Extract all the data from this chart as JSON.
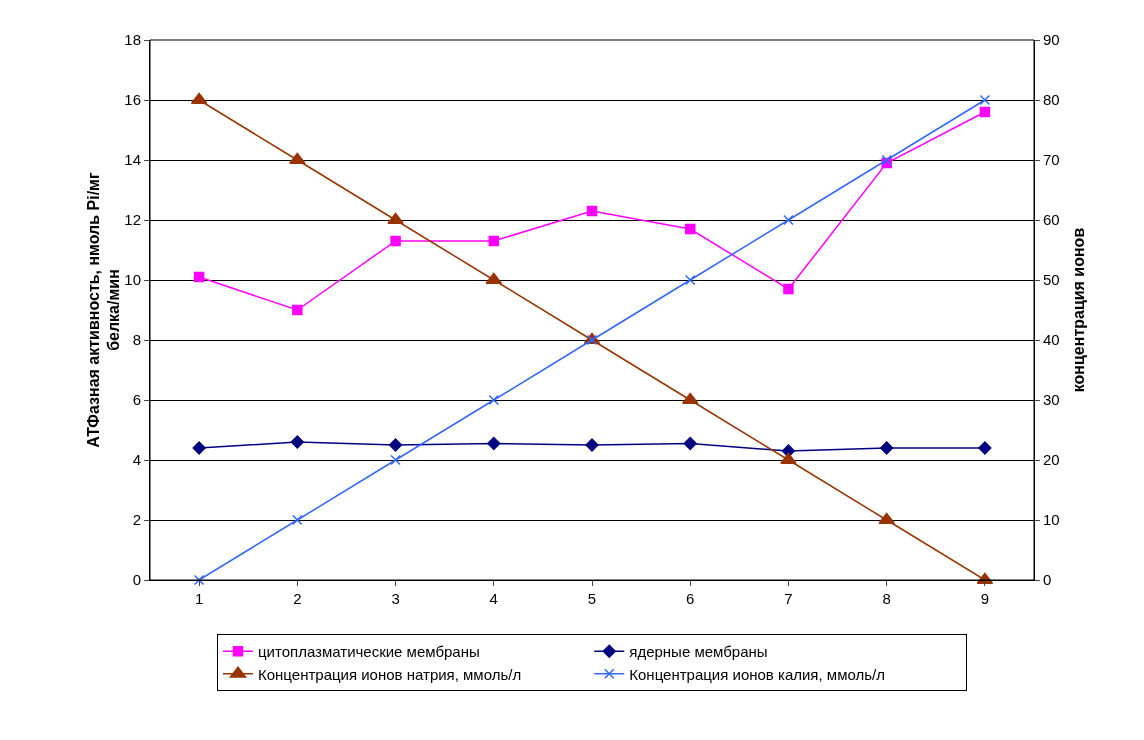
{
  "chart_data": {
    "type": "line",
    "ylabel": "АТФазная активность, нмоль Pi/мг белка/мин",
    "y2label": "концентрация ионов",
    "categories": [
      "1",
      "2",
      "3",
      "4",
      "5",
      "6",
      "7",
      "8",
      "9"
    ],
    "series": [
      {
        "name": "цитоплазматические мембраны",
        "color": "#ff00ff",
        "marker": "square",
        "values": [
          10.1,
          9.0,
          11.3,
          11.3,
          12.3,
          11.7,
          9.7,
          13.9,
          15.6
        ]
      },
      {
        "name": "ядерные мембраны",
        "color": "#000080",
        "marker": "diamond",
        "values": [
          4.4,
          4.6,
          4.5,
          4.55,
          4.5,
          4.55,
          4.3,
          4.4,
          4.4
        ]
      },
      {
        "name": "Концентрация ионов натрия, ммоль/л",
        "color": "#993300",
        "marker": "triangle",
        "axis": "y2",
        "values": [
          80,
          70,
          60,
          50,
          40,
          30,
          20,
          10,
          0
        ]
      },
      {
        "name": "Концентрация ионов калия, ммоль/л",
        "color": "#3366ff",
        "marker": "cross",
        "axis": "y2",
        "values": [
          0,
          10,
          20,
          30,
          40,
          50,
          60,
          70,
          80
        ]
      }
    ],
    "ylim": [
      0,
      18
    ],
    "yticks": [
      0,
      2,
      4,
      6,
      8,
      10,
      12,
      14,
      16,
      18
    ],
    "y2lim": [
      0,
      90
    ],
    "y2ticks": [
      0,
      10,
      20,
      30,
      40,
      50,
      60,
      70,
      80,
      90
    ],
    "grid": "y",
    "legend": "bottom",
    "line_style": "solid"
  }
}
